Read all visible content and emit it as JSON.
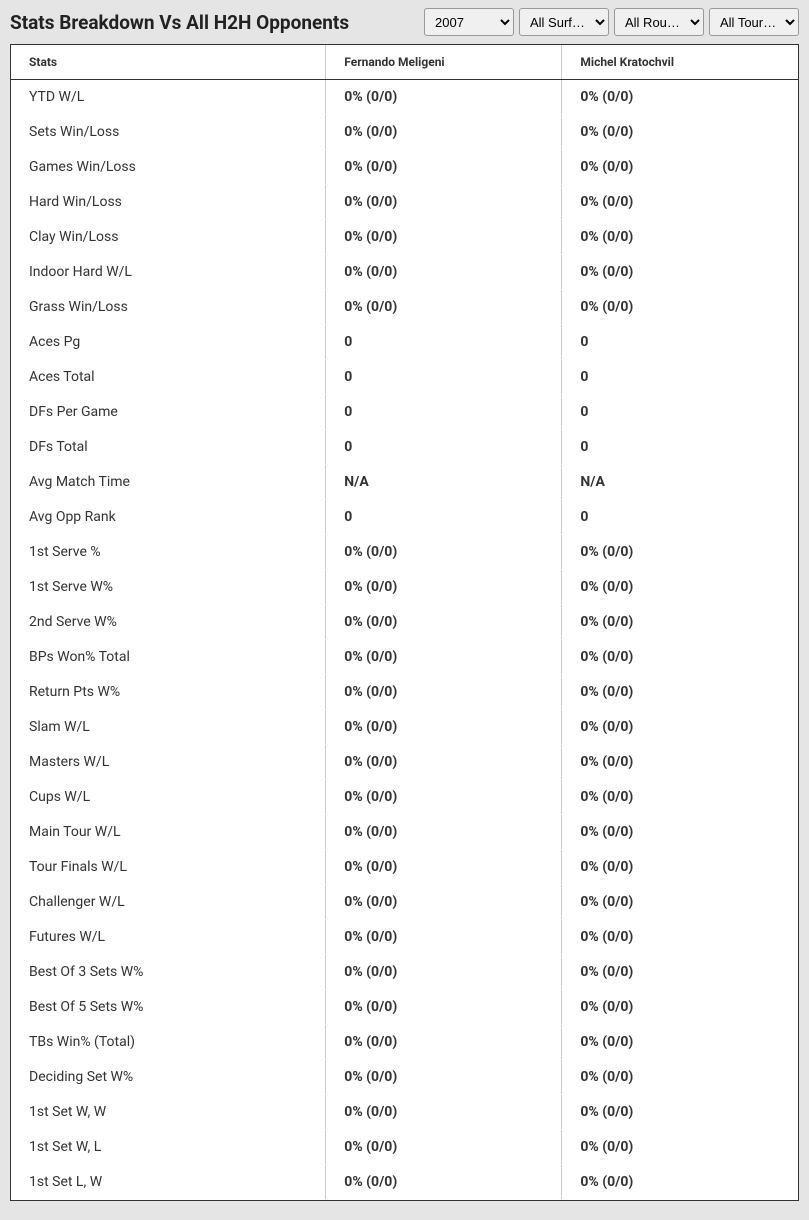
{
  "header": {
    "title": "Stats Breakdown Vs All H2H Opponents"
  },
  "filters": {
    "year": {
      "selected": "2007",
      "options": [
        "2007"
      ]
    },
    "surface": {
      "selected": "All Surf…",
      "options": [
        "All Surf…"
      ]
    },
    "round": {
      "selected": "All Rou…",
      "options": [
        "All Rou…"
      ]
    },
    "tour": {
      "selected": "All Tour…",
      "options": [
        "All Tour…"
      ]
    }
  },
  "table": {
    "columns": [
      "Stats",
      "Fernando Meligeni",
      "Michel Kratochvil"
    ],
    "rows": [
      [
        "YTD W/L",
        "0% (0/0)",
        "0% (0/0)"
      ],
      [
        "Sets Win/Loss",
        "0% (0/0)",
        "0% (0/0)"
      ],
      [
        "Games Win/Loss",
        "0% (0/0)",
        "0% (0/0)"
      ],
      [
        "Hard Win/Loss",
        "0% (0/0)",
        "0% (0/0)"
      ],
      [
        "Clay Win/Loss",
        "0% (0/0)",
        "0% (0/0)"
      ],
      [
        "Indoor Hard W/L",
        "0% (0/0)",
        "0% (0/0)"
      ],
      [
        "Grass Win/Loss",
        "0% (0/0)",
        "0% (0/0)"
      ],
      [
        "Aces Pg",
        "0",
        "0"
      ],
      [
        "Aces Total",
        "0",
        "0"
      ],
      [
        "DFs Per Game",
        "0",
        "0"
      ],
      [
        "DFs Total",
        "0",
        "0"
      ],
      [
        "Avg Match Time",
        "N/A",
        "N/A"
      ],
      [
        "Avg Opp Rank",
        "0",
        "0"
      ],
      [
        "1st Serve %",
        "0% (0/0)",
        "0% (0/0)"
      ],
      [
        "1st Serve W%",
        "0% (0/0)",
        "0% (0/0)"
      ],
      [
        "2nd Serve W%",
        "0% (0/0)",
        "0% (0/0)"
      ],
      [
        "BPs Won% Total",
        "0% (0/0)",
        "0% (0/0)"
      ],
      [
        "Return Pts W%",
        "0% (0/0)",
        "0% (0/0)"
      ],
      [
        "Slam W/L",
        "0% (0/0)",
        "0% (0/0)"
      ],
      [
        "Masters W/L",
        "0% (0/0)",
        "0% (0/0)"
      ],
      [
        "Cups W/L",
        "0% (0/0)",
        "0% (0/0)"
      ],
      [
        "Main Tour W/L",
        "0% (0/0)",
        "0% (0/0)"
      ],
      [
        "Tour Finals W/L",
        "0% (0/0)",
        "0% (0/0)"
      ],
      [
        "Challenger W/L",
        "0% (0/0)",
        "0% (0/0)"
      ],
      [
        "Futures W/L",
        "0% (0/0)",
        "0% (0/0)"
      ],
      [
        "Best Of 3 Sets W%",
        "0% (0/0)",
        "0% (0/0)"
      ],
      [
        "Best Of 5 Sets W%",
        "0% (0/0)",
        "0% (0/0)"
      ],
      [
        "TBs Win% (Total)",
        "0% (0/0)",
        "0% (0/0)"
      ],
      [
        "Deciding Set W%",
        "0% (0/0)",
        "0% (0/0)"
      ],
      [
        "1st Set W, W",
        "0% (0/0)",
        "0% (0/0)"
      ],
      [
        "1st Set W, L",
        "0% (0/0)",
        "0% (0/0)"
      ],
      [
        "1st Set L, W",
        "0% (0/0)",
        "0% (0/0)"
      ]
    ]
  }
}
